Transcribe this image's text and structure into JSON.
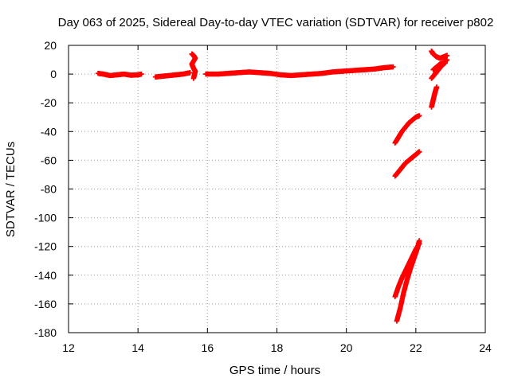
{
  "chart_data": {
    "type": "scatter",
    "title": "Day 063 of 2025, Sidereal Day-to-day VTEC variation (SDTVAR) for receiver p802",
    "xlabel": "GPS time / hours",
    "ylabel": "SDTVAR / TECUs",
    "xlim": [
      12,
      24
    ],
    "ylim": [
      -180,
      20
    ],
    "xticks": [
      12,
      14,
      16,
      18,
      20,
      22,
      24
    ],
    "yticks": [
      -180,
      -160,
      -140,
      -120,
      -100,
      -80,
      -60,
      -40,
      -20,
      0,
      20
    ],
    "grid": true,
    "marker": "plus",
    "color": "#ff0000",
    "segments": [
      {
        "name": "arc-1",
        "x": [
          12.85,
          13.0,
          13.2,
          13.4,
          13.6,
          13.8,
          14.0,
          14.1
        ],
        "y": [
          0.5,
          0,
          -1,
          -0.5,
          0,
          -0.8,
          -0.5,
          0
        ]
      },
      {
        "name": "arc-2",
        "x": [
          14.5,
          14.7,
          14.9,
          15.1,
          15.3,
          15.5
        ],
        "y": [
          -2,
          -1.5,
          -1,
          -0.5,
          0,
          1
        ]
      },
      {
        "name": "arc-3",
        "x": [
          15.55,
          15.6,
          15.65,
          15.55,
          15.6,
          15.65,
          15.6
        ],
        "y": [
          14,
          13,
          11,
          7,
          4,
          2,
          -3
        ]
      },
      {
        "name": "arc-4",
        "x": [
          15.95,
          16.3,
          16.6,
          16.9,
          17.2,
          17.5,
          17.8,
          18.1,
          18.4,
          18.7,
          19.0,
          19.3,
          19.6,
          19.9,
          20.2,
          20.5,
          20.8,
          21.1,
          21.35
        ],
        "y": [
          0,
          0,
          0.5,
          1,
          1.5,
          1,
          0.5,
          -0.5,
          -1,
          -0.5,
          0,
          0.5,
          1.5,
          2,
          2.5,
          3,
          3.5,
          4.5,
          5
        ]
      },
      {
        "name": "arc-5",
        "x": [
          21.4,
          21.5,
          21.6,
          21.7,
          21.8,
          21.9,
          22.0,
          22.1
        ],
        "y": [
          -48,
          -44,
          -40,
          -37,
          -34,
          -32,
          -30,
          -29
        ]
      },
      {
        "name": "arc-6",
        "x": [
          21.4,
          21.5,
          21.6,
          21.7,
          21.8,
          21.9,
          22.0,
          22.1
        ],
        "y": [
          -71,
          -68,
          -65,
          -62,
          -60,
          -58,
          -56,
          -54
        ]
      },
      {
        "name": "arc-7",
        "x": [
          21.45,
          21.55,
          21.65,
          21.75,
          21.85,
          21.95,
          22.05,
          22.1
        ],
        "y": [
          -172,
          -163,
          -152,
          -143,
          -135,
          -128,
          -121,
          -116
        ]
      },
      {
        "name": "arc-8",
        "x": [
          21.4,
          21.5,
          21.6,
          21.7,
          21.8,
          21.9,
          22.0,
          22.1
        ],
        "y": [
          -155,
          -148,
          -142,
          -137,
          -132,
          -127,
          -122,
          -118
        ]
      },
      {
        "name": "arc-9",
        "x": [
          22.45,
          22.5,
          22.55,
          22.6
        ],
        "y": [
          -23,
          -18,
          -13,
          -9
        ]
      },
      {
        "name": "arc-10",
        "x": [
          22.5,
          22.6,
          22.7,
          22.8,
          22.9
        ],
        "y": [
          3,
          5,
          7,
          8,
          10
        ]
      },
      {
        "name": "arc-11",
        "x": [
          22.45,
          22.55,
          22.65,
          22.75,
          22.85
        ],
        "y": [
          -3,
          0,
          3,
          6,
          8
        ]
      },
      {
        "name": "arc-12",
        "x": [
          22.45,
          22.5,
          22.6,
          22.7,
          22.8,
          22.9
        ],
        "y": [
          16,
          14,
          12,
          11,
          12,
          13
        ]
      }
    ]
  }
}
